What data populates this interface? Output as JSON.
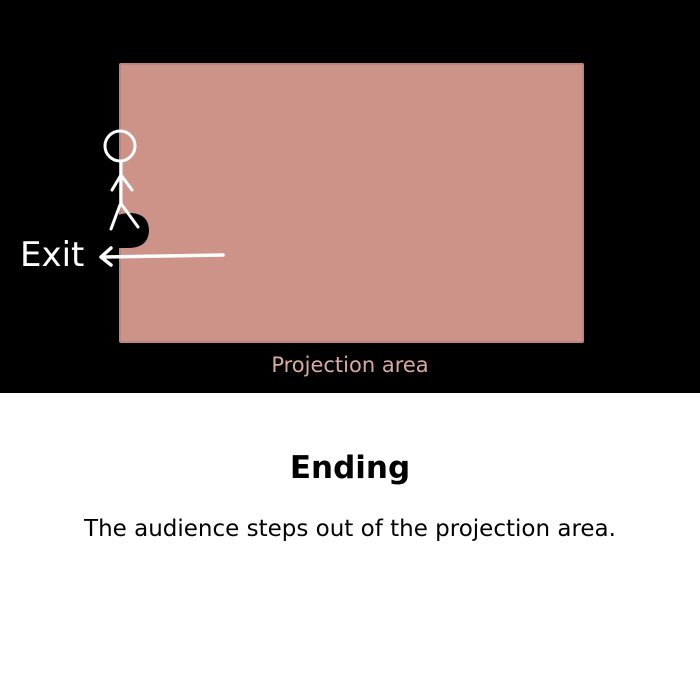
{
  "diagram": {
    "projection_label": "Projection area",
    "exit_label": "Exit",
    "colors": {
      "background": "#000000",
      "projection_fill": "#cd9388",
      "projection_border": "#b9877d",
      "projection_label": "#d9aaa1",
      "figure": "#ffffff",
      "exit_label": "#ffffff"
    },
    "icons": {
      "figure": "stick-figure-icon",
      "arrow": "left-arrow-icon"
    }
  },
  "caption": {
    "title": "Ending",
    "text": "The audience steps out of the projection area."
  }
}
